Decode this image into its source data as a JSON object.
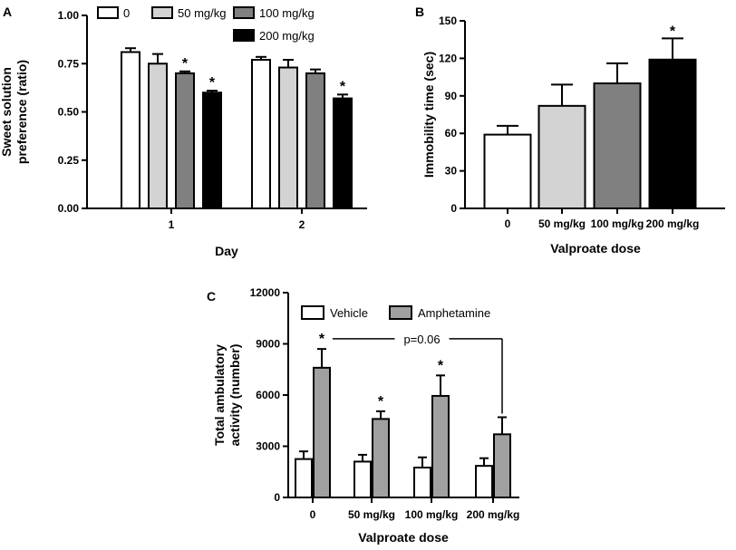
{
  "figure": {
    "panels": [
      "A",
      "B",
      "C"
    ]
  },
  "chart_data": [
    {
      "id": "A",
      "type": "bar",
      "xlabel": "Day",
      "ylabel": "Sweet solution\npreference (ratio)",
      "ylim": [
        0,
        1.0
      ],
      "yticks": [
        "0.00",
        "0.25",
        "0.50",
        "0.75",
        "1.00"
      ],
      "ytick_values": [
        0,
        0.25,
        0.5,
        0.75,
        1.0
      ],
      "categories": [
        "1",
        "2"
      ],
      "legend_position": "top",
      "series": [
        {
          "name": "0",
          "color": "#ffffff",
          "values": [
            0.81,
            0.77
          ],
          "errors": [
            0.02,
            0.015
          ],
          "stars": [
            false,
            false
          ]
        },
        {
          "name": "50 mg/kg",
          "color": "#d3d3d3",
          "values": [
            0.75,
            0.73
          ],
          "errors": [
            0.05,
            0.04
          ],
          "stars": [
            false,
            false
          ]
        },
        {
          "name": "100 mg/kg",
          "color": "#808080",
          "values": [
            0.7,
            0.7
          ],
          "errors": [
            0.01,
            0.02
          ],
          "stars": [
            true,
            false
          ]
        },
        {
          "name": "200 mg/kg",
          "color": "#000000",
          "values": [
            0.6,
            0.57
          ],
          "errors": [
            0.01,
            0.02
          ],
          "stars": [
            true,
            true
          ]
        }
      ]
    },
    {
      "id": "B",
      "type": "bar",
      "xlabel": "Valproate dose",
      "ylabel": "Immobility time (sec)",
      "ylim": [
        0,
        150
      ],
      "yticks": [
        "0",
        "30",
        "60",
        "90",
        "120",
        "150"
      ],
      "ytick_values": [
        0,
        30,
        60,
        90,
        120,
        150
      ],
      "categories": [
        "0",
        "50 mg/kg",
        "100 mg/kg",
        "200 mg/kg"
      ],
      "values": [
        59,
        82,
        100,
        119
      ],
      "errors": [
        7,
        17,
        16,
        17
      ],
      "colors": [
        "#ffffff",
        "#d3d3d3",
        "#808080",
        "#000000"
      ],
      "stars": [
        false,
        false,
        false,
        true
      ]
    },
    {
      "id": "C",
      "type": "bar",
      "xlabel": "Valproate dose",
      "ylabel": "Total ambulatory\nactivity (number)",
      "ylim": [
        0,
        12000
      ],
      "yticks": [
        "0",
        "3000",
        "6000",
        "9000",
        "12000"
      ],
      "ytick_values": [
        0,
        3000,
        6000,
        9000,
        12000
      ],
      "categories": [
        "0",
        "50 mg/kg",
        "100 mg/kg",
        "200 mg/kg"
      ],
      "legend_position": "top",
      "series": [
        {
          "name": "Vehicle",
          "color": "#ffffff",
          "values": [
            2250,
            2100,
            1750,
            1850
          ],
          "errors": [
            450,
            400,
            600,
            450
          ],
          "stars": [
            false,
            false,
            false,
            false
          ]
        },
        {
          "name": "Amphetamine",
          "color": "#a0a0a0",
          "values": [
            7600,
            4600,
            5950,
            3700
          ],
          "errors": [
            1100,
            450,
            1200,
            1000
          ],
          "stars": [
            true,
            true,
            true,
            false
          ]
        }
      ],
      "annotation": {
        "text": "p=0.06",
        "from_category": 0,
        "to_category": 3,
        "level": 9300
      }
    }
  ]
}
